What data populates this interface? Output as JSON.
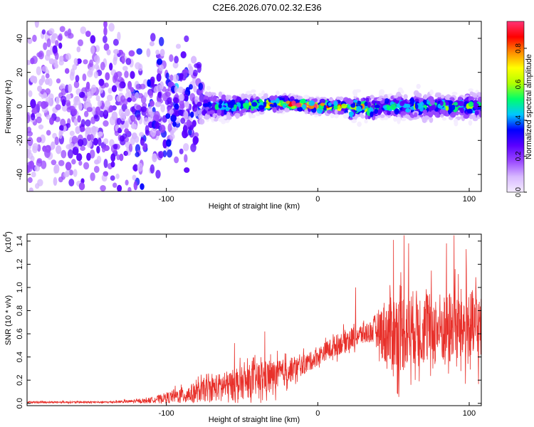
{
  "title": "C2E6.2026.070.02.32.E36",
  "chart_data": [
    {
      "type": "heatmap",
      "title": "C2E6.2026.070.02.32.E36",
      "xlabel": "Height of straight line (km)",
      "ylabel": "Frequency (Hz)",
      "xlim": [
        -192,
        108
      ],
      "ylim": [
        -50,
        50
      ],
      "x_ticks": [
        -100,
        0,
        100
      ],
      "x_tick_labels": [
        "-100",
        "0",
        "100"
      ],
      "y_ticks": [
        -40,
        -20,
        0,
        20,
        40
      ],
      "y_tick_labels": [
        "-40",
        "-20",
        "0",
        "20",
        "40"
      ],
      "colorbar": {
        "label": "Normalized spectral amplitude",
        "range": [
          0,
          0.95
        ],
        "ticks": [
          0.0,
          0.2,
          0.4,
          0.6,
          0.8
        ],
        "tick_labels": [
          "0.0",
          "0.2",
          "0.4",
          "0.6",
          "0.8"
        ],
        "colors": [
          "#f4ecff",
          "#d7b8ff",
          "#9a48ff",
          "#5a00ff",
          "#0000ff",
          "#00c8ff",
          "#00ff6a",
          "#b0ff00",
          "#ffff00",
          "#ff8c00",
          "#ff0000",
          "#ff3377"
        ]
      },
      "band_profile": {
        "x": [
          -192,
          -130,
          -110,
          -95,
          -80,
          -75,
          -60,
          -40,
          -20,
          0,
          10,
          20,
          22,
          25,
          30,
          35,
          40,
          50,
          70,
          90,
          108
        ],
        "center_hz": [
          0,
          0,
          0,
          0,
          0,
          0,
          0,
          1,
          2,
          0,
          0,
          0,
          -3,
          0,
          0,
          -2,
          0,
          0,
          0,
          0,
          0
        ],
        "halfwidth_hz": [
          48,
          48,
          35,
          30,
          25,
          8,
          7,
          5,
          4,
          4,
          4,
          5,
          7,
          6,
          6,
          8,
          6,
          7,
          8,
          7,
          8
        ],
        "peak_amplitude": [
          0.2,
          0.25,
          0.35,
          0.4,
          0.35,
          0.45,
          0.5,
          0.6,
          0.85,
          0.95,
          0.8,
          0.7,
          0.6,
          0.75,
          0.7,
          0.6,
          0.55,
          0.5,
          0.5,
          0.55,
          0.5
        ]
      }
    },
    {
      "type": "line",
      "xlabel": "Height of straight line (km)",
      "ylabel": "SNR (10 * v/v)",
      "y_multiplier": "(x10",
      "y_multiplier_exponent": "4",
      "y_multiplier_close": ")",
      "xlim": [
        -192,
        108
      ],
      "ylim": [
        -0.02,
        1.46
      ],
      "x_ticks": [
        -100,
        0,
        100
      ],
      "x_tick_labels": [
        "-100",
        "0",
        "100"
      ],
      "y_ticks": [
        0.0,
        0.2,
        0.4,
        0.6,
        0.8,
        1.0,
        1.2,
        1.4
      ],
      "y_tick_labels": [
        "0.0",
        "0.2",
        "0.4",
        "0.6",
        "0.8",
        "1.0",
        "1.2",
        "1.4"
      ],
      "series": [
        {
          "name": "SNR",
          "color": "#e8302a",
          "envelope_x": [
            -192,
            -140,
            -115,
            -105,
            -95,
            -85,
            -75,
            -65,
            -55,
            -45,
            -35,
            -25,
            -15,
            -5,
            5,
            15,
            25,
            35,
            40,
            45,
            55,
            65,
            75,
            85,
            95,
            100,
            108
          ],
          "envelope_mean": [
            0.01,
            0.01,
            0.02,
            0.04,
            0.06,
            0.08,
            0.11,
            0.14,
            0.16,
            0.19,
            0.22,
            0.25,
            0.3,
            0.36,
            0.45,
            0.52,
            0.58,
            0.62,
            0.65,
            0.6,
            0.62,
            0.66,
            0.64,
            0.65,
            0.66,
            0.65,
            0.64
          ],
          "envelope_spread": [
            0.01,
            0.01,
            0.02,
            0.04,
            0.07,
            0.1,
            0.12,
            0.15,
            0.17,
            0.18,
            0.18,
            0.16,
            0.12,
            0.1,
            0.1,
            0.12,
            0.12,
            0.12,
            0.2,
            0.4,
            0.45,
            0.4,
            0.4,
            0.4,
            0.42,
            0.42,
            0.4
          ],
          "peaks": [
            {
              "x": 50,
              "y": 1.41
            },
            {
              "x": 57,
              "y": 1.45
            },
            {
              "x": 60,
              "y": 1.38
            },
            {
              "x": 85,
              "y": 1.38
            },
            {
              "x": 90,
              "y": 1.45
            },
            {
              "x": 98,
              "y": 1.33
            },
            {
              "x": 25,
              "y": 1.0
            },
            {
              "x": -35,
              "y": 0.62
            },
            {
              "x": -55,
              "y": 0.52
            }
          ]
        }
      ]
    }
  ]
}
